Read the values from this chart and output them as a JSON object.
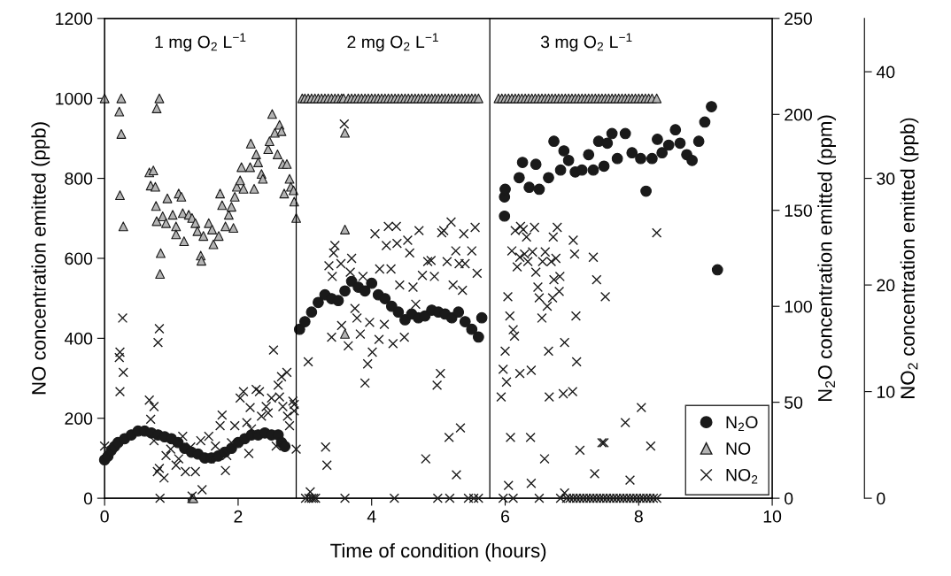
{
  "chart_data": {
    "type": "scatter",
    "xlabel": "Time of condition (hours)",
    "ylabel": "NO concentration emitted (ppb)",
    "y2label": "N$_{2}$O concentration emitted (ppm)",
    "y3label": "NO$_{2}$ concentration emitted (ppb)",
    "xlim": [
      0,
      10
    ],
    "xticks": [
      0,
      2,
      4,
      6,
      8,
      10
    ],
    "ylim": [
      0,
      1200
    ],
    "yticks": [
      0,
      200,
      400,
      600,
      800,
      1000,
      1200
    ],
    "y2lim": [
      0,
      250
    ],
    "y2ticks": [
      0,
      50,
      100,
      150,
      200,
      250
    ],
    "y3lim": [
      0,
      45
    ],
    "y3ticks": [
      0,
      10,
      20,
      30,
      40
    ],
    "grid": false,
    "legend": "bottom right",
    "ref_lines": [
      {
        "axis": "x",
        "value": 2.87,
        "color": "#000000",
        "line_style": "solid"
      },
      {
        "axis": "x",
        "value": 5.77,
        "color": "#000000",
        "line_style": "solid"
      }
    ],
    "annotations": [
      "1 mg O$_{2}$ L$^{−1}$",
      "2 mg O$_{2}$ L$^{−1}$",
      "3 mg O$_{2}$ L$^{−1}$"
    ],
    "series": [
      {
        "name": "N$_{2}$O",
        "color": "#1a1a1a",
        "marker": "circle",
        "axis": "y2",
        "x": [
          0.0,
          0.05,
          0.1,
          0.15,
          0.2,
          0.3,
          0.4,
          0.5,
          0.6,
          0.7,
          0.8,
          0.9,
          1.0,
          1.1,
          1.2,
          1.3,
          1.4,
          1.5,
          1.6,
          1.7,
          1.8,
          1.9,
          2.0,
          2.1,
          2.2,
          2.3,
          2.4,
          2.5,
          2.6,
          2.65,
          2.7,
          2.92,
          3.0,
          3.1,
          3.2,
          3.3,
          3.4,
          3.5,
          3.6,
          3.7,
          3.8,
          3.9,
          4.0,
          4.1,
          4.2,
          4.3,
          4.4,
          4.5,
          4.6,
          4.7,
          4.8,
          4.9,
          5.0,
          5.1,
          5.2,
          5.3,
          5.4,
          5.5,
          5.6,
          5.65,
          5.99,
          5.99,
          6.0,
          6.21,
          6.26,
          6.36,
          6.46,
          6.51,
          6.65,
          6.73,
          6.83,
          6.88,
          6.95,
          7.05,
          7.15,
          7.25,
          7.32,
          7.4,
          7.48,
          7.53,
          7.6,
          7.68,
          7.8,
          7.9,
          8.03,
          8.11,
          8.2,
          8.28,
          8.35,
          8.45,
          8.55,
          8.62,
          8.72,
          8.8,
          8.9,
          8.99,
          9.09,
          9.18
        ],
        "values": [
          20,
          22,
          25,
          27,
          29,
          31,
          33,
          35,
          35,
          34,
          33,
          32,
          31,
          29,
          26,
          24,
          23,
          21,
          21,
          22,
          24,
          26,
          29,
          31,
          33,
          33,
          34,
          33,
          33,
          29,
          27,
          88,
          92,
          97,
          102,
          106,
          104,
          103,
          108,
          113,
          110,
          108,
          112,
          106,
          104,
          100,
          97,
          93,
          96,
          94,
          95,
          98,
          97,
          96,
          94,
          97,
          92,
          88,
          84,
          94,
          147,
          157,
          161,
          167,
          175,
          162,
          174,
          161,
          167,
          186,
          171,
          181,
          176,
          170,
          171,
          179,
          171,
          186,
          173,
          185,
          190,
          177,
          190,
          180,
          177,
          160,
          177,
          187,
          180,
          184,
          192,
          185,
          179,
          176,
          186,
          196,
          204,
          119
        ]
      },
      {
        "name": "NO",
        "color": "#b4b4b4",
        "marker": "triangle",
        "x": [
          0.0,
          0.25,
          0.22,
          0.25,
          0.23,
          0.28,
          0.82,
          0.78,
          0.67,
          0.73,
          0.69,
          0.76,
          0.77,
          0.84,
          0.83,
          0.78,
          0.87,
          0.94,
          0.92,
          1.02,
          1.07,
          1.11,
          1.15,
          1.17,
          1.07,
          1.19,
          1.26,
          1.31,
          1.36,
          1.39,
          1.44,
          1.45,
          1.48,
          1.56,
          1.61,
          1.63,
          1.71,
          1.73,
          1.76,
          1.81,
          1.86,
          1.9,
          1.95,
          1.93,
          1.98,
          2.03,
          2.05,
          2.08,
          2.18,
          2.19,
          2.24,
          2.27,
          2.3,
          2.35,
          2.37,
          2.45,
          2.47,
          2.51,
          2.55,
          2.59,
          2.62,
          2.65,
          2.67,
          2.73,
          2.69,
          2.77,
          2.79,
          2.83,
          2.84,
          2.87,
          1.31,
          1.33,
          2.96,
          3.0,
          3.05,
          3.1,
          3.15,
          3.2,
          3.25,
          3.3,
          3.35,
          3.4,
          3.45,
          3.5,
          3.55,
          3.58,
          3.65,
          3.7,
          3.75,
          3.8,
          3.85,
          3.9,
          3.95,
          4.0,
          4.05,
          4.1,
          4.15,
          4.2,
          4.25,
          4.3,
          4.35,
          4.4,
          4.45,
          4.5,
          4.55,
          4.6,
          4.65,
          4.7,
          4.75,
          4.8,
          4.85,
          4.9,
          4.95,
          5.0,
          5.05,
          5.1,
          5.15,
          5.2,
          5.25,
          5.3,
          5.35,
          5.4,
          5.45,
          5.5,
          5.55,
          5.6,
          3.6,
          3.6,
          3.6,
          5.9,
          5.95,
          6.0,
          6.05,
          6.1,
          6.15,
          6.2,
          6.25,
          6.3,
          6.35,
          6.4,
          6.45,
          6.5,
          6.55,
          6.6,
          6.65,
          6.7,
          6.75,
          6.8,
          6.85,
          6.9,
          6.95,
          7.0,
          7.05,
          7.1,
          7.15,
          7.2,
          7.25,
          7.3,
          7.35,
          7.4,
          7.45,
          7.5,
          7.55,
          7.6,
          7.65,
          7.7,
          7.75,
          7.8,
          7.85,
          7.9,
          7.95,
          8.0,
          8.05,
          8.1,
          8.15,
          8.2,
          8.27
        ],
        "values": [
          1000,
          1000,
          967,
          911,
          758,
          680,
          1000,
          975,
          815,
          820,
          782,
          779,
          731,
          613,
          561,
          693,
          705,
          750,
          688,
          709,
          680,
          762,
          754,
          713,
          660,
          643,
          709,
          701,
          688,
          668,
          607,
          594,
          656,
          688,
          672,
          635,
          656,
          762,
          733,
          680,
          709,
          729,
          754,
          676,
          779,
          795,
          828,
          774,
          828,
          887,
          774,
          860,
          840,
          811,
          799,
          873,
          893,
          961,
          914,
          860,
          934,
          918,
          836,
          836,
          762,
          799,
          779,
          770,
          742,
          701,
          0,
          0,
          1000,
          1000,
          1000,
          1000,
          1000,
          1000,
          1000,
          1000,
          1000,
          1000,
          1000,
          1000,
          1000,
          1000,
          1000,
          1000,
          1000,
          1000,
          1000,
          1000,
          1000,
          1000,
          1000,
          1000,
          1000,
          1000,
          1000,
          1000,
          1000,
          1000,
          1000,
          1000,
          1000,
          1000,
          1000,
          1000,
          1000,
          1000,
          1000,
          1000,
          1000,
          1000,
          1000,
          1000,
          1000,
          1000,
          1000,
          1000,
          1000,
          1000,
          1000,
          1000,
          1000,
          1000,
          914,
          672,
          411,
          1000,
          1000,
          1000,
          1000,
          1000,
          1000,
          1000,
          1000,
          1000,
          1000,
          1000,
          1000,
          1000,
          1000,
          1000,
          1000,
          1000,
          1000,
          1000,
          1000,
          1000,
          1000,
          1000,
          1000,
          1000,
          1000,
          1000,
          1000,
          1000,
          1000,
          1000,
          1000,
          1000,
          1000,
          1000,
          1000,
          1000,
          1000,
          1000,
          1000,
          1000,
          1000,
          1000,
          1000,
          1000,
          1000,
          1000,
          1000
        ]
      },
      {
        "name": "NO$_{2}$",
        "color": "#1a1a1a",
        "marker": "cross",
        "axis": "y3",
        "x": [
          0.0,
          0.27,
          0.23,
          0.22,
          0.28,
          0.23,
          0.82,
          0.8,
          0.67,
          0.74,
          0.69,
          0.79,
          0.82,
          0.89,
          0.83,
          0.74,
          0.92,
          0.99,
          1.07,
          1.11,
          1.17,
          1.21,
          1.29,
          1.36,
          1.31,
          1.46,
          1.44,
          1.56,
          1.58,
          1.66,
          1.73,
          1.76,
          1.81,
          1.83,
          1.9,
          1.95,
          2.03,
          2.08,
          2.13,
          2.16,
          2.18,
          2.2,
          2.27,
          2.32,
          2.35,
          2.42,
          2.45,
          2.5,
          2.53,
          2.57,
          2.6,
          2.62,
          2.65,
          2.67,
          2.73,
          2.74,
          2.77,
          2.82,
          2.84,
          2.87,
          2.84,
          3.05,
          3.01,
          3.08,
          3.13,
          3.31,
          3.33,
          3.4,
          3.36,
          3.43,
          3.45,
          3.41,
          3.54,
          3.55,
          3.6,
          3.59,
          3.65,
          3.68,
          3.7,
          3.75,
          3.78,
          3.83,
          3.87,
          3.9,
          3.94,
          3.97,
          4.01,
          4.05,
          4.11,
          4.12,
          4.19,
          4.22,
          4.25,
          4.29,
          4.32,
          4.34,
          4.37,
          4.38,
          4.42,
          4.49,
          4.54,
          4.57,
          4.62,
          4.66,
          4.71,
          4.76,
          4.81,
          4.84,
          4.89,
          4.94,
          4.98,
          4.99,
          5.03,
          5.05,
          5.08,
          5.13,
          5.17,
          5.16,
          5.19,
          5.22,
          5.26,
          5.27,
          5.31,
          5.33,
          5.36,
          5.38,
          5.4,
          5.45,
          5.5,
          5.53,
          5.55,
          5.58,
          5.6,
          3.06,
          3.1,
          3.16,
          5.94,
          5.97,
          6.0,
          6.02,
          6.05,
          5.97,
          6.04,
          6.07,
          6.08,
          6.1,
          6.12,
          6.14,
          6.12,
          6.15,
          6.18,
          6.22,
          6.22,
          6.23,
          6.27,
          6.29,
          6.32,
          6.34,
          6.38,
          6.39,
          6.39,
          6.41,
          6.44,
          6.46,
          6.49,
          6.51,
          6.51,
          6.55,
          6.56,
          6.59,
          6.6,
          6.63,
          6.65,
          6.66,
          6.69,
          6.71,
          6.72,
          6.73,
          6.76,
          6.78,
          6.81,
          6.82,
          6.83,
          6.87,
          6.89,
          6.89,
          7.01,
          7.02,
          7.04,
          7.06,
          7.07,
          7.12,
          7.32,
          7.34,
          7.37,
          7.45,
          7.48,
          7.5,
          7.8,
          7.87,
          8.04,
          8.18,
          8.27,
          6.92,
          6.97,
          7.02,
          7.07,
          7.12,
          7.17,
          7.22,
          7.27,
          7.32,
          7.37,
          7.42,
          7.47,
          7.52,
          7.57,
          7.62,
          7.67,
          7.72,
          7.77,
          7.82,
          7.87,
          7.92,
          7.97,
          8.02,
          8.07,
          8.12,
          8.17,
          8.22,
          8.27
        ],
        "values": [
          4.9,
          16.9,
          13.7,
          13.2,
          11.8,
          10.0,
          15.9,
          14.6,
          9.2,
          8.6,
          7.4,
          2.5,
          2.8,
          1.9,
          0,
          5.4,
          4.0,
          4.6,
          3.1,
          3.7,
          5.8,
          2.5,
          4.8,
          2.5,
          0.2,
          0.8,
          5.4,
          5.8,
          3.7,
          4.9,
          6.8,
          7.8,
          2.6,
          4.0,
          5.2,
          6.8,
          9.4,
          10.0,
          7.1,
          4.2,
          8.5,
          6.5,
          10.2,
          10.0,
          7.7,
          8.6,
          8.0,
          9.4,
          13.9,
          4.9,
          10.6,
          9.5,
          11.4,
          8.6,
          11.8,
          7.7,
          6.8,
          9.1,
          8.2,
          4.6,
          8.8,
          12.8,
          0,
          0.6,
          0,
          4.8,
          3.1,
          15.1,
          21.8,
          23.0,
          23.7,
          20.8,
          22.0,
          16.2,
          0,
          35.1,
          14.3,
          21.2,
          22.5,
          17.8,
          16.9,
          15.4,
          20.8,
          10.8,
          12.6,
          16.5,
          13.7,
          24.8,
          14.9,
          21.5,
          16.3,
          23.7,
          25.5,
          21.5,
          14.5,
          0,
          25.5,
          23.9,
          20.0,
          15.1,
          24.2,
          23.0,
          19.8,
          18.2,
          25.1,
          20.9,
          3.7,
          22.2,
          22.3,
          20.8,
          10.6,
          0,
          11.7,
          24.9,
          25.1,
          22.2,
          0,
          5.7,
          25.9,
          20.0,
          23.2,
          2.2,
          22.0,
          6.6,
          19.5,
          24.8,
          22.0,
          0,
          23.2,
          0,
          25.4,
          21.1,
          0,
          0,
          0,
          0,
          9.5,
          12.1,
          13.8,
          10.9,
          1.2,
          0,
          18.9,
          17.1,
          5.7,
          23.2,
          15.8,
          15.2,
          0,
          25.1,
          21.7,
          22.6,
          11.7,
          25.5,
          25.2,
          22.9,
          24.5,
          22.2,
          5.7,
          12.0,
          1.4,
          23.1,
          25.4,
          21.2,
          19.8,
          18.8,
          0,
          16.9,
          22.2,
          3.7,
          23.1,
          18.0,
          13.8,
          9.5,
          22.2,
          18.8,
          24.5,
          20.5,
          22.5,
          25.4,
          19.4,
          20.8,
          0,
          9.8,
          14.6,
          0.5,
          10.0,
          24.2,
          22.9,
          17.1,
          12.8,
          4.5,
          22.6,
          2.3,
          20.5,
          5.2,
          5.2,
          18.9,
          7.1,
          1.7,
          8.5,
          4.9,
          24.9,
          0,
          0,
          0,
          0,
          0,
          0,
          0,
          0,
          0,
          0,
          0,
          0,
          0,
          0,
          0,
          0,
          0,
          0,
          0,
          0,
          0,
          0,
          0,
          0,
          0,
          0,
          0,
          0
        ]
      }
    ]
  }
}
